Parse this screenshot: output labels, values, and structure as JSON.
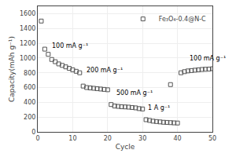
{
  "chart_data": {
    "type": "scatter",
    "xlabel": "Cycle",
    "ylabel": "Capacity(mAh g⁻¹)",
    "xlim": [
      0,
      50
    ],
    "ylim": [
      0,
      1700
    ],
    "xticks": [
      0,
      10,
      20,
      30,
      40,
      50
    ],
    "yticks": [
      0,
      200,
      400,
      600,
      800,
      1000,
      1200,
      1400,
      1600
    ],
    "grid": true,
    "legend": "upper right",
    "color": "#555555",
    "marker": "square-open",
    "series": [
      {
        "name": "Fe₃O₄-0.4@N-C",
        "x": [
          1,
          2
        ],
        "values": [
          1500,
          1120
        ]
      },
      {
        "x": [
          3,
          4,
          5,
          6,
          7,
          8,
          9,
          10,
          11,
          12
        ],
        "values": [
          1050,
          980,
          950,
          920,
          900,
          880,
          860,
          840,
          820,
          800
        ]
      },
      {
        "x": [
          13,
          14,
          15,
          16,
          17,
          18,
          19,
          20
        ],
        "values": [
          620,
          600,
          595,
          590,
          585,
          580,
          575,
          570
        ]
      },
      {
        "x": [
          21,
          22,
          23,
          24,
          25,
          26,
          27,
          28,
          29,
          30
        ],
        "values": [
          370,
          350,
          345,
          340,
          338,
          335,
          330,
          325,
          315,
          310
        ]
      },
      {
        "x": [
          31,
          32,
          33,
          34,
          35,
          36,
          37,
          38,
          39,
          40
        ],
        "values": [
          165,
          155,
          145,
          140,
          135,
          130,
          128,
          125,
          122,
          120
        ]
      },
      {
        "x": [
          38
        ],
        "values": [
          640
        ]
      },
      {
        "x": [
          41,
          42,
          43,
          44,
          45,
          46,
          47,
          48,
          49,
          50
        ],
        "values": [
          800,
          815,
          825,
          830,
          835,
          840,
          845,
          848,
          850,
          855
        ]
      }
    ],
    "annotations": [
      {
        "text": "100 mA g⁻¹",
        "x": 3.5,
        "y": 1090
      },
      {
        "text": "200 mA g⁻¹",
        "x": 13.5,
        "y": 760
      },
      {
        "text": "500 mA g⁻¹",
        "x": 22,
        "y": 460
      },
      {
        "text": "1 A g⁻¹",
        "x": 31,
        "y": 250
      },
      {
        "text": "100 mA g⁻¹",
        "x": 43,
        "y": 920
      }
    ]
  }
}
